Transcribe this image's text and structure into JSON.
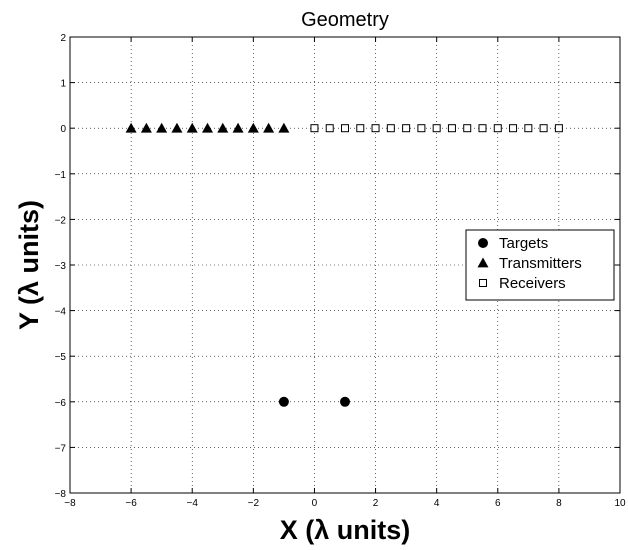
{
  "chart_data": {
    "type": "scatter",
    "title": "Geometry",
    "xlabel": "X (λ units)",
    "ylabel": "Y (λ units)",
    "xlim": [
      -8,
      10
    ],
    "ylim": [
      -8,
      2
    ],
    "xticks": [
      -8,
      -6,
      -4,
      -2,
      0,
      2,
      4,
      6,
      8,
      10
    ],
    "yticks": [
      -8,
      -7,
      -6,
      -5,
      -4,
      -3,
      -2,
      -1,
      0,
      1,
      2
    ],
    "grid": true,
    "legend_position": "right",
    "series": [
      {
        "name": "Targets",
        "marker": "circle-filled",
        "color": "#000000",
        "points": [
          [
            -1,
            -6
          ],
          [
            1,
            -6
          ]
        ]
      },
      {
        "name": "Transmitters",
        "marker": "triangle-filled",
        "color": "#000000",
        "points": [
          [
            -6,
            0
          ],
          [
            -5.5,
            0
          ],
          [
            -5,
            0
          ],
          [
            -4.5,
            0
          ],
          [
            -4,
            0
          ],
          [
            -3.5,
            0
          ],
          [
            -3,
            0
          ],
          [
            -2.5,
            0
          ],
          [
            -2,
            0
          ],
          [
            -1.5,
            0
          ],
          [
            -1,
            0
          ]
        ]
      },
      {
        "name": "Receivers",
        "marker": "square-open",
        "color": "#000000",
        "points": [
          [
            0,
            0
          ],
          [
            0.5,
            0
          ],
          [
            1,
            0
          ],
          [
            1.5,
            0
          ],
          [
            2,
            0
          ],
          [
            2.5,
            0
          ],
          [
            3,
            0
          ],
          [
            3.5,
            0
          ],
          [
            4,
            0
          ],
          [
            4.5,
            0
          ],
          [
            5,
            0
          ],
          [
            5.5,
            0
          ],
          [
            6,
            0
          ],
          [
            6.5,
            0
          ],
          [
            7,
            0
          ],
          [
            7.5,
            0
          ],
          [
            8,
            0
          ]
        ]
      }
    ]
  }
}
